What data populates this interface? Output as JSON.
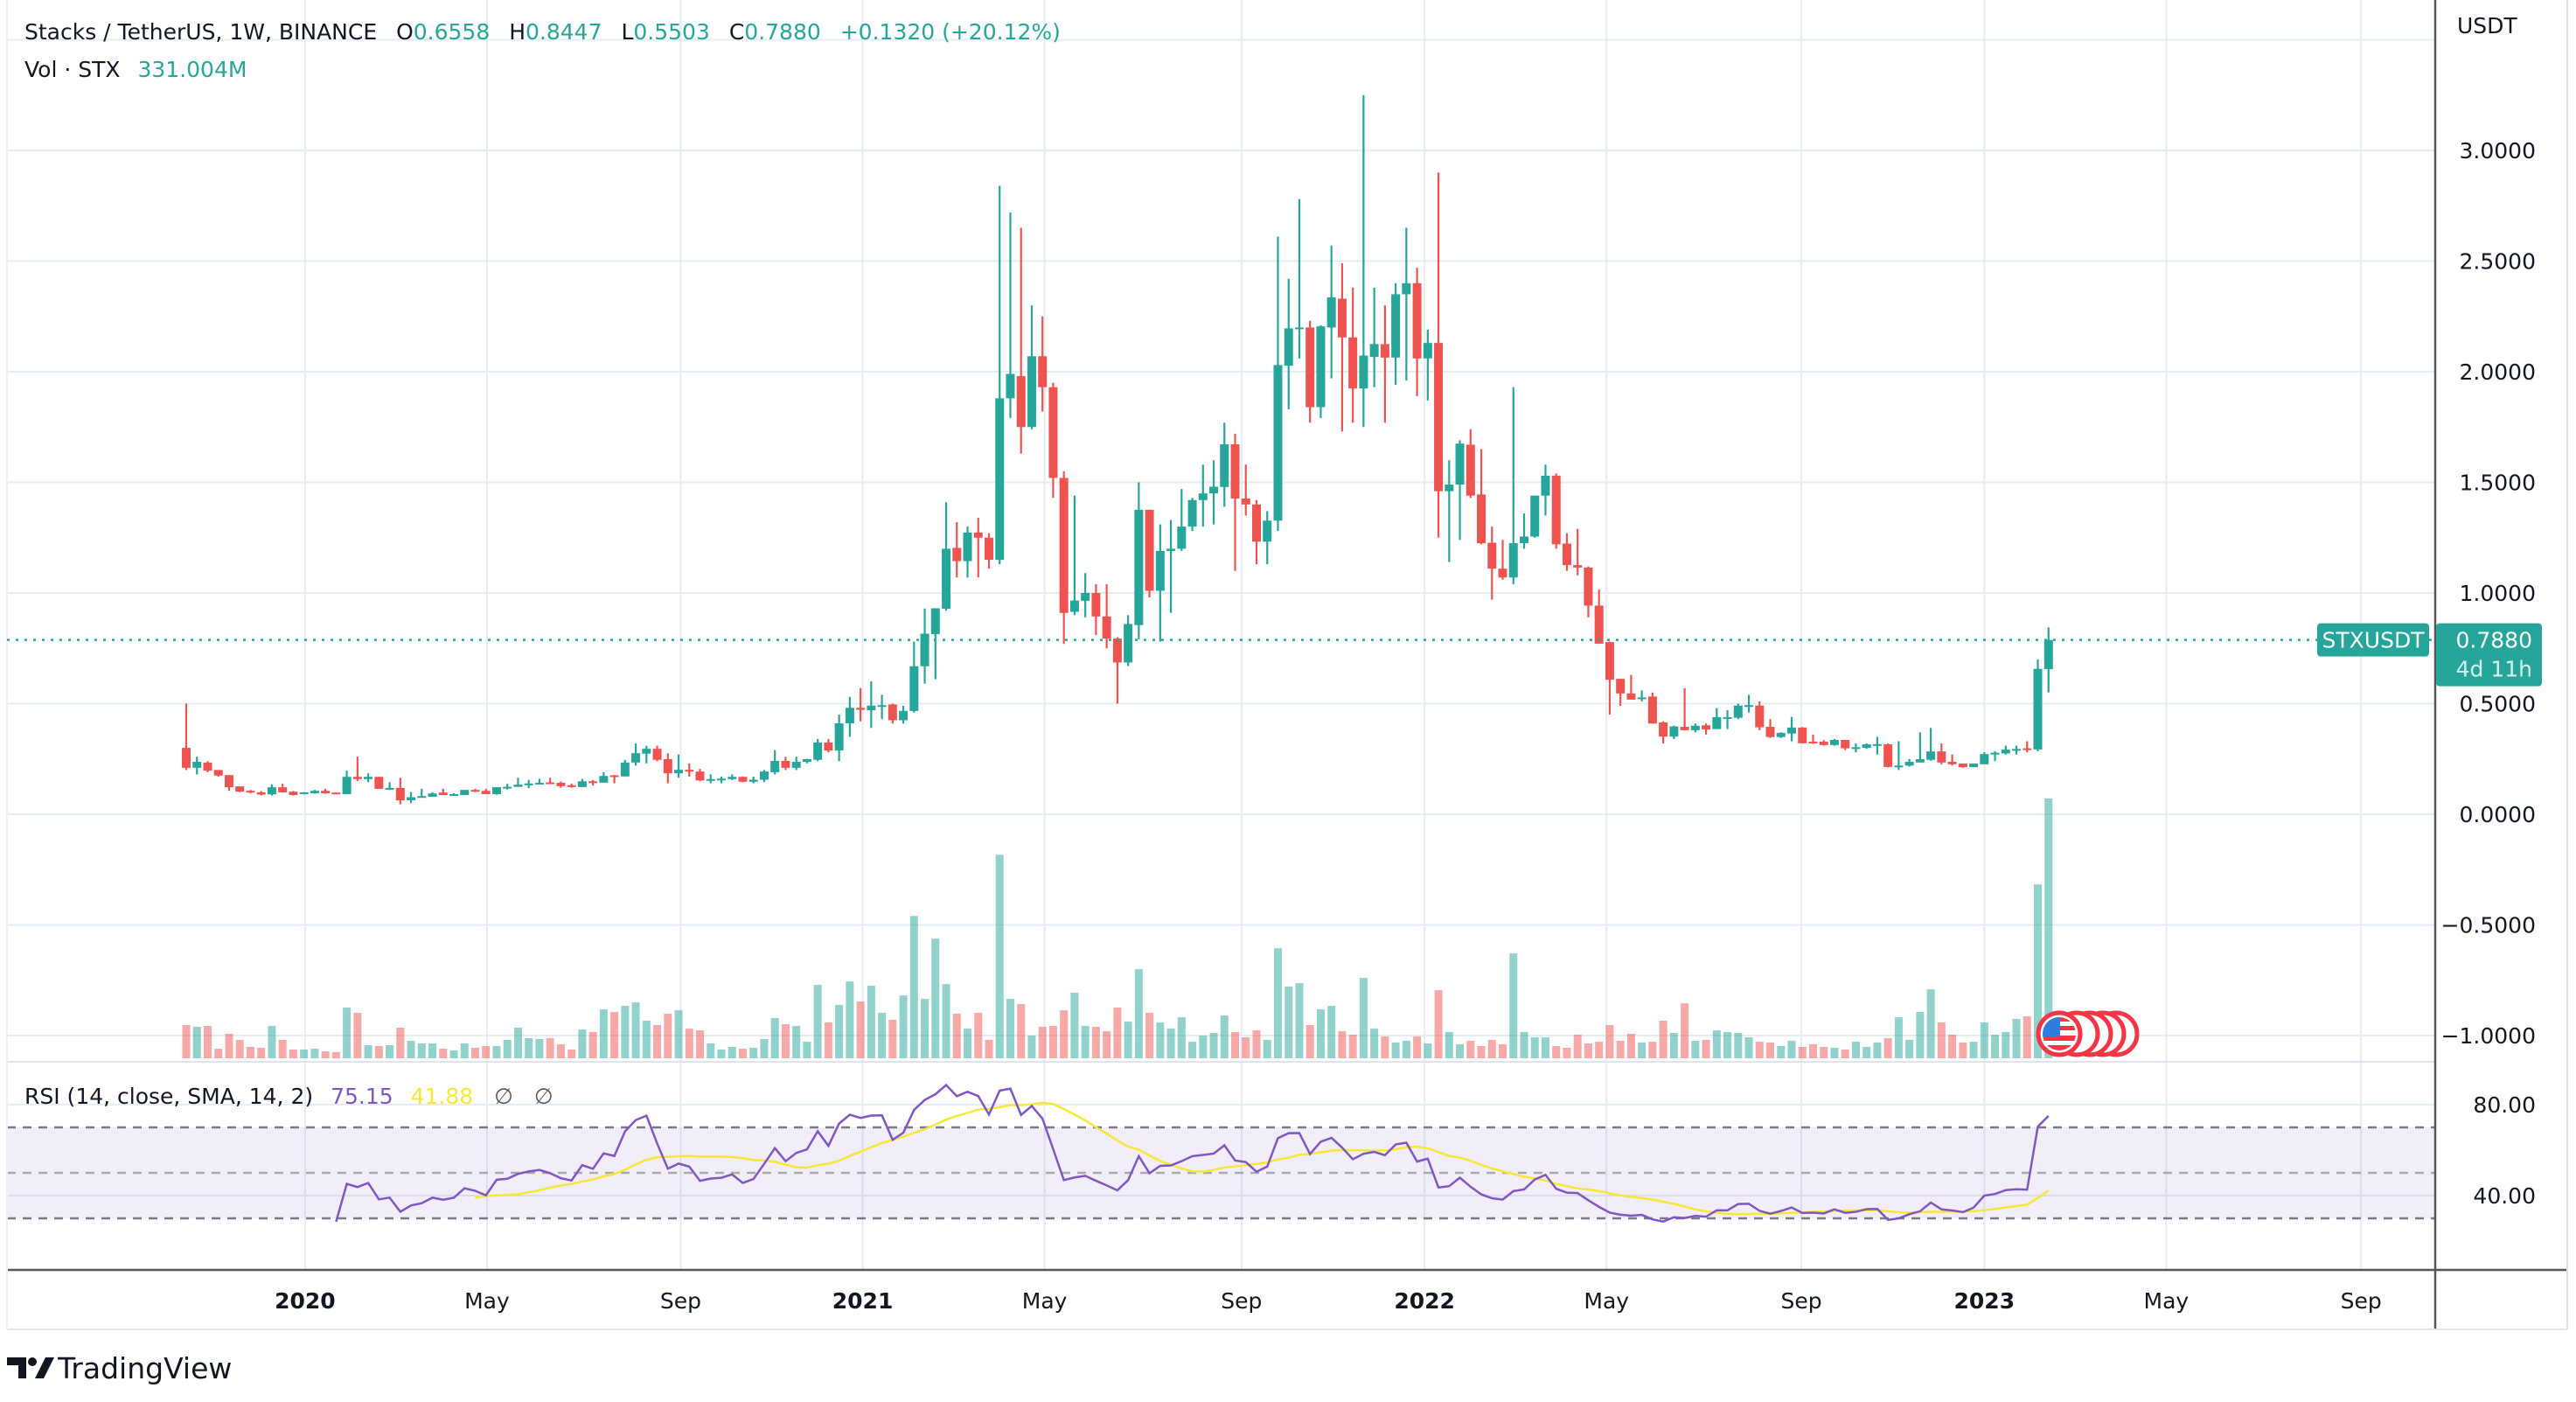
{
  "header": {
    "symbol_title": "Stacks / TetherUS, 1W, BINANCE",
    "o_label": "O",
    "o": "0.6558",
    "h_label": "H",
    "h": "0.8447",
    "l_label": "L",
    "l": "0.5503",
    "c_label": "C",
    "c": "0.7880",
    "change": "+0.1320 (+20.12%)"
  },
  "volume_legend": {
    "label": "Vol · STX",
    "value": "331.004M"
  },
  "rsi_legend": {
    "label": "RSI (14, close, SMA, 14, 2)",
    "rsi": "75.15",
    "sma": "41.88",
    "v1": "∅",
    "v2": "∅"
  },
  "price_axis": {
    "currency": "USDT",
    "ticks": [
      {
        "value": 3.0,
        "label": "3.0000"
      },
      {
        "value": 2.5,
        "label": "2.5000"
      },
      {
        "value": 2.0,
        "label": "2.0000"
      },
      {
        "value": 1.5,
        "label": "1.5000"
      },
      {
        "value": 1.0,
        "label": "1.0000"
      },
      {
        "value": 0.5,
        "label": "0.5000"
      },
      {
        "value": 0.0,
        "label": "0.0000"
      },
      {
        "value": -0.5,
        "label": "−0.5000"
      },
      {
        "value": -1.0,
        "label": "−1.0000"
      }
    ]
  },
  "last_price": {
    "symbol": "STXUSDT",
    "price": "0.7880",
    "value": 0.788,
    "countdown": "4d 11h"
  },
  "rsi_axis": {
    "ticks": [
      {
        "value": 80,
        "label": "80.00"
      },
      {
        "value": 40,
        "label": "40.00"
      }
    ],
    "bands": [
      70,
      50,
      30
    ]
  },
  "time_axis": {
    "ticks": [
      {
        "label": "2020",
        "bar_index": 11.1,
        "bold": true
      },
      {
        "label": "May",
        "bar_index": 28.1
      },
      {
        "label": "Sep",
        "bar_index": 46.2
      },
      {
        "label": "2021",
        "bar_index": 63.2,
        "bold": true
      },
      {
        "label": "May",
        "bar_index": 80.2
      },
      {
        "label": "Sep",
        "bar_index": 98.6
      },
      {
        "label": "2022",
        "bar_index": 115.7,
        "bold": true
      },
      {
        "label": "May",
        "bar_index": 132.7
      },
      {
        "label": "Sep",
        "bar_index": 150.9
      },
      {
        "label": "2023",
        "bar_index": 168.0,
        "bold": true
      },
      {
        "label": "May",
        "bar_index": 185.0
      },
      {
        "label": "Sep",
        "bar_index": 203.2
      }
    ]
  },
  "branding": {
    "logo_text": "TradingView"
  },
  "colors": {
    "up": "#26a69a",
    "down": "#ef5350",
    "rsi": "#7e57c2",
    "rsi_sma": "#f5e935",
    "grid": "#e6ecf3",
    "text": "#131722"
  },
  "chart_data": {
    "type": "candlestick",
    "title": "Stacks / TetherUS, 1W, BINANCE",
    "interval": "1W",
    "ylabel": "USDT",
    "ylim": [
      -1.0,
      3.5
    ],
    "ohlc": [
      [
        0.3,
        0.5,
        0.2,
        0.21
      ],
      [
        0.21,
        0.26,
        0.18,
        0.237
      ],
      [
        0.233,
        0.24,
        0.19,
        0.197
      ],
      [
        0.2,
        0.2,
        0.17,
        0.175
      ],
      [
        0.177,
        0.177,
        0.106,
        0.122
      ],
      [
        0.126,
        0.126,
        0.1,
        0.102
      ],
      [
        0.106,
        0.11,
        0.095,
        0.099
      ],
      [
        0.099,
        0.105,
        0.085,
        0.089
      ],
      [
        0.09,
        0.135,
        0.085,
        0.122
      ],
      [
        0.122,
        0.138,
        0.098,
        0.099
      ],
      [
        0.102,
        0.105,
        0.085,
        0.087
      ],
      [
        0.095,
        0.1,
        0.09,
        0.099
      ],
      [
        0.095,
        0.11,
        0.093,
        0.106
      ],
      [
        0.106,
        0.115,
        0.093,
        0.095
      ],
      [
        0.098,
        0.098,
        0.09,
        0.091
      ],
      [
        0.091,
        0.197,
        0.091,
        0.169
      ],
      [
        0.169,
        0.26,
        0.15,
        0.159
      ],
      [
        0.159,
        0.185,
        0.145,
        0.169
      ],
      [
        0.169,
        0.169,
        0.115,
        0.115
      ],
      [
        0.115,
        0.145,
        0.11,
        0.119
      ],
      [
        0.119,
        0.165,
        0.045,
        0.063
      ],
      [
        0.063,
        0.1,
        0.05,
        0.077
      ],
      [
        0.077,
        0.115,
        0.077,
        0.082
      ],
      [
        0.079,
        0.1,
        0.079,
        0.094
      ],
      [
        0.098,
        0.115,
        0.087,
        0.087
      ],
      [
        0.086,
        0.095,
        0.083,
        0.091
      ],
      [
        0.087,
        0.11,
        0.087,
        0.11
      ],
      [
        0.11,
        0.115,
        0.1,
        0.103
      ],
      [
        0.106,
        0.115,
        0.091,
        0.091
      ],
      [
        0.091,
        0.122,
        0.088,
        0.122
      ],
      [
        0.119,
        0.138,
        0.112,
        0.124
      ],
      [
        0.124,
        0.165,
        0.124,
        0.134
      ],
      [
        0.134,
        0.155,
        0.118,
        0.139
      ],
      [
        0.136,
        0.16,
        0.136,
        0.142
      ],
      [
        0.144,
        0.165,
        0.14,
        0.136
      ],
      [
        0.142,
        0.148,
        0.12,
        0.127
      ],
      [
        0.131,
        0.138,
        0.12,
        0.123
      ],
      [
        0.123,
        0.16,
        0.123,
        0.149
      ],
      [
        0.149,
        0.155,
        0.13,
        0.143
      ],
      [
        0.143,
        0.19,
        0.143,
        0.173
      ],
      [
        0.176,
        0.178,
        0.14,
        0.169
      ],
      [
        0.171,
        0.245,
        0.171,
        0.233
      ],
      [
        0.234,
        0.32,
        0.22,
        0.276
      ],
      [
        0.274,
        0.31,
        0.23,
        0.296
      ],
      [
        0.296,
        0.31,
        0.24,
        0.246
      ],
      [
        0.249,
        0.275,
        0.14,
        0.185
      ],
      [
        0.185,
        0.27,
        0.165,
        0.201
      ],
      [
        0.201,
        0.23,
        0.17,
        0.193
      ],
      [
        0.193,
        0.205,
        0.15,
        0.153
      ],
      [
        0.153,
        0.18,
        0.14,
        0.159
      ],
      [
        0.157,
        0.17,
        0.14,
        0.161
      ],
      [
        0.159,
        0.18,
        0.155,
        0.169
      ],
      [
        0.169,
        0.171,
        0.145,
        0.147
      ],
      [
        0.147,
        0.17,
        0.14,
        0.156
      ],
      [
        0.156,
        0.2,
        0.145,
        0.193
      ],
      [
        0.19,
        0.29,
        0.18,
        0.241
      ],
      [
        0.241,
        0.26,
        0.2,
        0.21
      ],
      [
        0.21,
        0.26,
        0.2,
        0.237
      ],
      [
        0.237,
        0.25,
        0.23,
        0.249
      ],
      [
        0.246,
        0.34,
        0.24,
        0.324
      ],
      [
        0.324,
        0.34,
        0.28,
        0.288
      ],
      [
        0.288,
        0.45,
        0.24,
        0.411
      ],
      [
        0.411,
        0.53,
        0.35,
        0.481
      ],
      [
        0.481,
        0.57,
        0.42,
        0.472
      ],
      [
        0.47,
        0.6,
        0.39,
        0.491
      ],
      [
        0.49,
        0.54,
        0.43,
        0.493
      ],
      [
        0.496,
        0.5,
        0.41,
        0.425
      ],
      [
        0.425,
        0.49,
        0.41,
        0.467
      ],
      [
        0.467,
        0.78,
        0.46,
        0.669
      ],
      [
        0.669,
        0.93,
        0.59,
        0.816
      ],
      [
        0.814,
        0.93,
        0.61,
        0.931
      ],
      [
        0.929,
        1.41,
        0.92,
        1.2
      ],
      [
        1.204,
        1.32,
        1.07,
        1.144
      ],
      [
        1.144,
        1.3,
        1.07,
        1.273
      ],
      [
        1.273,
        1.34,
        1.07,
        1.25
      ],
      [
        1.25,
        1.27,
        1.11,
        1.15
      ],
      [
        1.15,
        2.84,
        1.13,
        1.88
      ],
      [
        1.88,
        2.72,
        1.79,
        1.99
      ],
      [
        1.98,
        2.65,
        1.63,
        1.75
      ],
      [
        1.75,
        2.3,
        1.74,
        2.07
      ],
      [
        2.07,
        2.25,
        1.82,
        1.93
      ],
      [
        1.93,
        1.95,
        1.43,
        1.52
      ],
      [
        1.52,
        1.55,
        0.77,
        0.91
      ],
      [
        0.915,
        1.44,
        0.9,
        0.966
      ],
      [
        0.965,
        1.09,
        0.89,
        1.0
      ],
      [
        1.0,
        1.04,
        0.81,
        0.894
      ],
      [
        0.894,
        1.04,
        0.75,
        0.794
      ],
      [
        0.794,
        0.8,
        0.5,
        0.686
      ],
      [
        0.686,
        0.9,
        0.67,
        0.86
      ],
      [
        0.855,
        1.5,
        0.79,
        1.376
      ],
      [
        1.376,
        1.376,
        0.98,
        1.01
      ],
      [
        1.01,
        1.31,
        0.78,
        1.19
      ],
      [
        1.19,
        1.33,
        0.91,
        1.2
      ],
      [
        1.2,
        1.47,
        1.19,
        1.3
      ],
      [
        1.3,
        1.43,
        1.28,
        1.42
      ],
      [
        1.42,
        1.58,
        1.3,
        1.45
      ],
      [
        1.45,
        1.6,
        1.31,
        1.48
      ],
      [
        1.479,
        1.77,
        1.39,
        1.672
      ],
      [
        1.672,
        1.72,
        1.1,
        1.427
      ],
      [
        1.427,
        1.58,
        1.35,
        1.4
      ],
      [
        1.4,
        1.42,
        1.13,
        1.232
      ],
      [
        1.232,
        1.37,
        1.13,
        1.327
      ],
      [
        1.327,
        2.61,
        1.28,
        2.03
      ],
      [
        2.027,
        2.42,
        1.83,
        2.196
      ],
      [
        2.196,
        2.78,
        2.06,
        2.2
      ],
      [
        2.2,
        2.23,
        1.77,
        1.84
      ],
      [
        1.84,
        2.21,
        1.79,
        2.205
      ],
      [
        2.2,
        2.57,
        1.97,
        2.336
      ],
      [
        2.33,
        2.49,
        1.73,
        2.155
      ],
      [
        2.155,
        2.38,
        1.77,
        1.924
      ],
      [
        1.924,
        3.25,
        1.75,
        2.073
      ],
      [
        2.067,
        2.38,
        1.93,
        2.125
      ],
      [
        2.125,
        2.3,
        1.77,
        2.064
      ],
      [
        2.064,
        2.4,
        1.94,
        2.35
      ],
      [
        2.35,
        2.65,
        1.96,
        2.4
      ],
      [
        2.4,
        2.47,
        1.89,
        2.06
      ],
      [
        2.06,
        2.19,
        1.87,
        2.13
      ],
      [
        2.13,
        2.9,
        1.25,
        1.46
      ],
      [
        1.46,
        1.6,
        1.14,
        1.49
      ],
      [
        1.49,
        1.69,
        1.24,
        1.675
      ],
      [
        1.67,
        1.74,
        1.43,
        1.44
      ],
      [
        1.445,
        1.65,
        1.22,
        1.225
      ],
      [
        1.227,
        1.3,
        0.97,
        1.11
      ],
      [
        1.11,
        1.24,
        1.06,
        1.07
      ],
      [
        1.07,
        1.93,
        1.04,
        1.225
      ],
      [
        1.225,
        1.36,
        1.2,
        1.255
      ],
      [
        1.255,
        1.44,
        1.25,
        1.44
      ],
      [
        1.44,
        1.58,
        1.35,
        1.53
      ],
      [
        1.53,
        1.54,
        1.2,
        1.22
      ],
      [
        1.223,
        1.27,
        1.1,
        1.126
      ],
      [
        1.126,
        1.29,
        1.08,
        1.115
      ],
      [
        1.115,
        1.12,
        0.89,
        0.943
      ],
      [
        0.943,
        1.015,
        0.77,
        0.771
      ],
      [
        0.778,
        0.78,
        0.45,
        0.608
      ],
      [
        0.612,
        0.612,
        0.49,
        0.546
      ],
      [
        0.546,
        0.63,
        0.52,
        0.518
      ],
      [
        0.521,
        0.56,
        0.51,
        0.528
      ],
      [
        0.532,
        0.55,
        0.41,
        0.41
      ],
      [
        0.415,
        0.42,
        0.32,
        0.351
      ],
      [
        0.351,
        0.4,
        0.34,
        0.397
      ],
      [
        0.395,
        0.57,
        0.38,
        0.38
      ],
      [
        0.38,
        0.41,
        0.37,
        0.4
      ],
      [
        0.402,
        0.41,
        0.36,
        0.383
      ],
      [
        0.385,
        0.48,
        0.385,
        0.439
      ],
      [
        0.436,
        0.47,
        0.385,
        0.439
      ],
      [
        0.436,
        0.5,
        0.43,
        0.491
      ],
      [
        0.491,
        0.54,
        0.46,
        0.493
      ],
      [
        0.491,
        0.51,
        0.38,
        0.393
      ],
      [
        0.395,
        0.43,
        0.345,
        0.349
      ],
      [
        0.349,
        0.37,
        0.345,
        0.368
      ],
      [
        0.365,
        0.44,
        0.33,
        0.392
      ],
      [
        0.392,
        0.394,
        0.32,
        0.321
      ],
      [
        0.328,
        0.36,
        0.318,
        0.323
      ],
      [
        0.328,
        0.335,
        0.31,
        0.313
      ],
      [
        0.313,
        0.34,
        0.31,
        0.336
      ],
      [
        0.336,
        0.336,
        0.29,
        0.298
      ],
      [
        0.3,
        0.32,
        0.28,
        0.303
      ],
      [
        0.3,
        0.32,
        0.296,
        0.316
      ],
      [
        0.313,
        0.35,
        0.27,
        0.317
      ],
      [
        0.316,
        0.32,
        0.212,
        0.214
      ],
      [
        0.217,
        0.33,
        0.2,
        0.22
      ],
      [
        0.22,
        0.25,
        0.215,
        0.237
      ],
      [
        0.234,
        0.37,
        0.234,
        0.249
      ],
      [
        0.246,
        0.39,
        0.242,
        0.284
      ],
      [
        0.284,
        0.32,
        0.226,
        0.234
      ],
      [
        0.237,
        0.27,
        0.22,
        0.226
      ],
      [
        0.229,
        0.229,
        0.21,
        0.213
      ],
      [
        0.213,
        0.229,
        0.213,
        0.229
      ],
      [
        0.226,
        0.28,
        0.226,
        0.272
      ],
      [
        0.272,
        0.285,
        0.24,
        0.278
      ],
      [
        0.275,
        0.31,
        0.27,
        0.292
      ],
      [
        0.292,
        0.31,
        0.27,
        0.295
      ],
      [
        0.298,
        0.33,
        0.28,
        0.293
      ],
      [
        0.293,
        0.7,
        0.285,
        0.657
      ],
      [
        0.6558,
        0.8447,
        0.5503,
        0.788
      ]
    ],
    "volume_m": [
      42.3,
      40.1,
      41.2,
      12.2,
      31.2,
      23.4,
      14.5,
      13.4,
      41.2,
      23.4,
      11.1,
      11.1,
      12.2,
      8.9,
      7.8,
      64.6,
      57.9,
      16.7,
      15.6,
      16.7,
      39,
      22.3,
      18.9,
      18.9,
      12.2,
      10,
      18.9,
      13.4,
      15.6,
      15.6,
      23.4,
      39,
      25.6,
      24.5,
      25.6,
      17.8,
      11.1,
      36.7,
      33.4,
      62.3,
      59,
      66.8,
      71.2,
      47.9,
      42.3,
      56.8,
      61.2,
      37.8,
      35.6,
      18.9,
      11.1,
      14.5,
      12.2,
      13.4,
      24.5,
      51.2,
      43.4,
      41.2,
      21.1,
      93.5,
      45.6,
      67.9,
      97.9,
      72.3,
      92.4,
      57.9,
      49,
      80.1,
      181.4,
      75.7,
      152.5,
      94.6,
      56.8,
      37.8,
      57.9,
      23.4,
      259.3,
      75.7,
      69,
      28.9,
      40.1,
      41.2,
      61.2,
      83.5,
      41.2,
      40.1,
      34.5,
      64.6,
      46.7,
      113.5,
      57.9,
      45.6,
      37.8,
      52.3,
      21.1,
      28.9,
      32.3,
      54.5,
      33.4,
      26.7,
      35.6,
      23.4,
      140.2,
      91.3,
      95.7,
      42.3,
      62.3,
      66.8,
      34.5,
      30.1,
      102.4,
      37.8,
      27.8,
      20,
      22.3,
      27.8,
      18.9,
      86.8,
      33.4,
      17.8,
      22.3,
      15.6,
      23.4,
      17.8,
      133.6,
      33.4,
      26.7,
      26.7,
      15.6,
      13.4,
      30.1,
      18.9,
      21.1,
      42.3,
      22.3,
      31.2,
      20,
      21.1,
      47.9,
      32.3,
      70.1,
      22.3,
      23.4,
      35.6,
      33.4,
      32.3,
      26.7,
      21.1,
      20,
      15.6,
      22.3,
      14.5,
      17.8,
      14.5,
      13.4,
      11.1,
      21.1,
      14.5,
      20,
      25.6,
      52.3,
      23.4,
      59,
      87.9,
      45.6,
      30.1,
      20,
      21.1,
      45.6,
      30.1,
      33.4,
      50.1,
      53.4,
      221.5,
      331.0
    ],
    "rsi": {
      "length": 14,
      "source": "close",
      "ma": "SMA",
      "ma_length": 14,
      "ylim": [
        7,
        99
      ]
    }
  }
}
